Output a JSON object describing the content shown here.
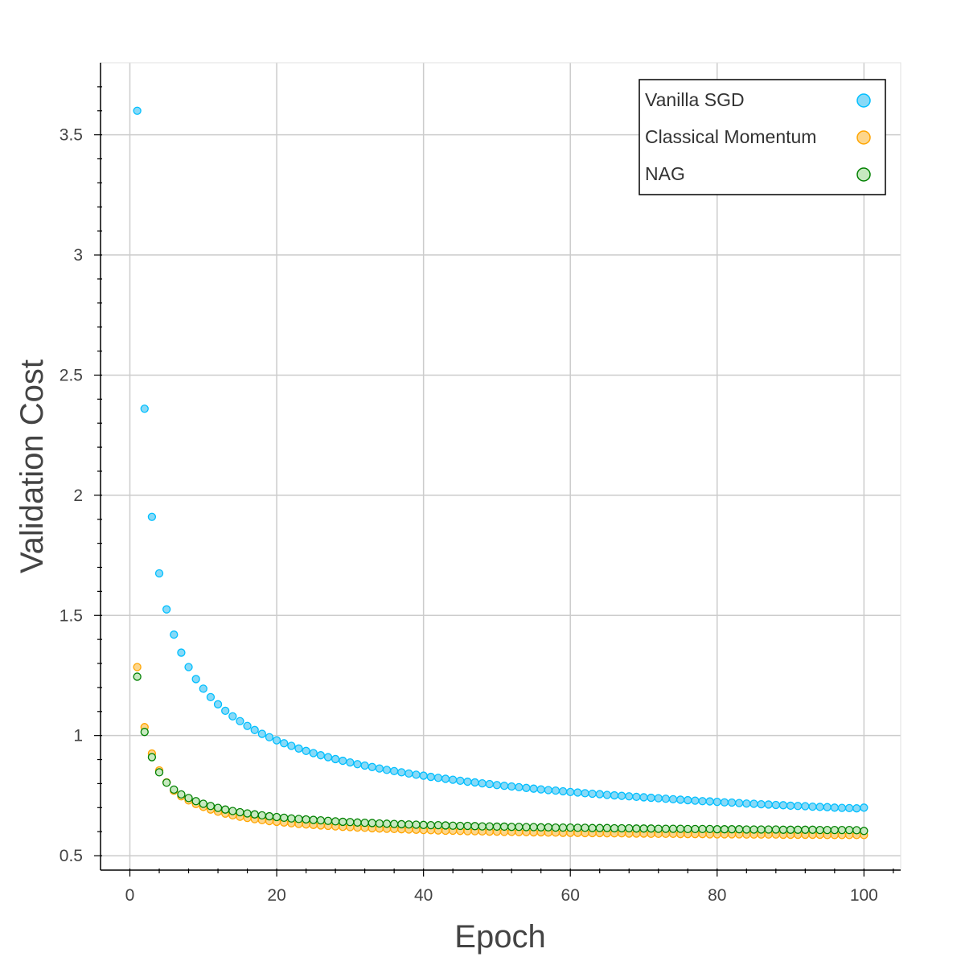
{
  "chart_data": {
    "type": "scatter",
    "title": "",
    "xlabel": "Epoch",
    "ylabel": "Validation Cost",
    "xlim": [
      -4,
      105
    ],
    "ylim": [
      0.44,
      3.8
    ],
    "grid": true,
    "legend_position": "top-right",
    "x_ticks": [
      0,
      20,
      40,
      60,
      80,
      100
    ],
    "x_tick_labels": [
      "0",
      "20",
      "40",
      "60",
      "80",
      "100"
    ],
    "y_ticks": [
      0.5,
      1,
      1.5,
      2,
      2.5,
      3,
      3.5
    ],
    "y_tick_labels": [
      "0.5",
      "1",
      "1.5",
      "2",
      "2.5",
      "3",
      "3.5"
    ],
    "series": [
      {
        "name": "Vanilla SGD",
        "fill": "#87d9f7",
        "stroke": "#00bfff",
        "x": [
          1,
          2,
          3,
          4,
          5,
          6,
          7,
          8,
          9,
          10,
          11,
          12,
          13,
          14,
          15,
          16,
          17,
          18,
          19,
          20,
          21,
          22,
          23,
          24,
          25,
          26,
          27,
          28,
          29,
          30,
          31,
          32,
          33,
          34,
          35,
          36,
          37,
          38,
          39,
          40,
          41,
          42,
          43,
          44,
          45,
          46,
          47,
          48,
          49,
          50,
          51,
          52,
          53,
          54,
          55,
          56,
          57,
          58,
          59,
          60,
          61,
          62,
          63,
          64,
          65,
          66,
          67,
          68,
          69,
          70,
          71,
          72,
          73,
          74,
          75,
          76,
          77,
          78,
          79,
          80,
          81,
          82,
          83,
          84,
          85,
          86,
          87,
          88,
          89,
          90,
          91,
          92,
          93,
          94,
          95,
          96,
          97,
          98,
          99,
          100
        ],
        "y": [
          3.6,
          2.36,
          1.91,
          1.675,
          1.525,
          1.42,
          1.345,
          1.285,
          1.235,
          1.195,
          1.16,
          1.13,
          1.103,
          1.08,
          1.06,
          1.04,
          1.023,
          1.007,
          0.993,
          0.98,
          0.968,
          0.957,
          0.946,
          0.936,
          0.927,
          0.918,
          0.91,
          0.902,
          0.895,
          0.888,
          0.881,
          0.875,
          0.869,
          0.863,
          0.857,
          0.852,
          0.847,
          0.842,
          0.837,
          0.833,
          0.828,
          0.824,
          0.82,
          0.816,
          0.812,
          0.808,
          0.805,
          0.801,
          0.798,
          0.794,
          0.791,
          0.788,
          0.785,
          0.782,
          0.779,
          0.776,
          0.773,
          0.771,
          0.768,
          0.765,
          0.763,
          0.76,
          0.758,
          0.756,
          0.753,
          0.751,
          0.749,
          0.747,
          0.745,
          0.743,
          0.741,
          0.739,
          0.737,
          0.735,
          0.733,
          0.731,
          0.729,
          0.727,
          0.726,
          0.724,
          0.722,
          0.721,
          0.719,
          0.717,
          0.716,
          0.714,
          0.713,
          0.711,
          0.71,
          0.708,
          0.707,
          0.706,
          0.704,
          0.703,
          0.702,
          0.7,
          0.699,
          0.698,
          0.697,
          0.7
        ]
      },
      {
        "name": "Classical Momentum",
        "fill": "#fdd68b",
        "stroke": "#ffa500",
        "x": [
          1,
          2,
          3,
          4,
          5,
          6,
          7,
          8,
          9,
          10,
          11,
          12,
          13,
          14,
          15,
          16,
          17,
          18,
          19,
          20,
          21,
          22,
          23,
          24,
          25,
          26,
          27,
          28,
          29,
          30,
          31,
          32,
          33,
          34,
          35,
          36,
          37,
          38,
          39,
          40,
          41,
          42,
          43,
          44,
          45,
          46,
          47,
          48,
          49,
          50,
          51,
          52,
          53,
          54,
          55,
          56,
          57,
          58,
          59,
          60,
          61,
          62,
          63,
          64,
          65,
          66,
          67,
          68,
          69,
          70,
          71,
          72,
          73,
          74,
          75,
          76,
          77,
          78,
          79,
          80,
          81,
          82,
          83,
          84,
          85,
          86,
          87,
          88,
          89,
          90,
          91,
          92,
          93,
          94,
          95,
          96,
          97,
          98,
          99,
          100
        ],
        "y": [
          1.285,
          1.035,
          0.925,
          0.855,
          0.805,
          0.77,
          0.747,
          0.73,
          0.715,
          0.703,
          0.692,
          0.683,
          0.675,
          0.668,
          0.662,
          0.657,
          0.652,
          0.648,
          0.644,
          0.641,
          0.638,
          0.635,
          0.632,
          0.63,
          0.628,
          0.626,
          0.624,
          0.622,
          0.62,
          0.619,
          0.617,
          0.616,
          0.614,
          0.613,
          0.612,
          0.611,
          0.61,
          0.609,
          0.608,
          0.607,
          0.606,
          0.605,
          0.604,
          0.604,
          0.603,
          0.602,
          0.602,
          0.601,
          0.6,
          0.6,
          0.599,
          0.599,
          0.598,
          0.598,
          0.597,
          0.597,
          0.596,
          0.596,
          0.595,
          0.595,
          0.595,
          0.594,
          0.594,
          0.594,
          0.593,
          0.593,
          0.593,
          0.592,
          0.592,
          0.592,
          0.591,
          0.591,
          0.591,
          0.591,
          0.59,
          0.59,
          0.59,
          0.59,
          0.589,
          0.589,
          0.589,
          0.589,
          0.589,
          0.588,
          0.588,
          0.588,
          0.588,
          0.588,
          0.587,
          0.587,
          0.587,
          0.587,
          0.587,
          0.587,
          0.586,
          0.586,
          0.586,
          0.586,
          0.586,
          0.586
        ]
      },
      {
        "name": "NAG",
        "fill": "#c7e9c0",
        "stroke": "#008000",
        "x": [
          1,
          2,
          3,
          4,
          5,
          6,
          7,
          8,
          9,
          10,
          11,
          12,
          13,
          14,
          15,
          16,
          17,
          18,
          19,
          20,
          21,
          22,
          23,
          24,
          25,
          26,
          27,
          28,
          29,
          30,
          31,
          32,
          33,
          34,
          35,
          36,
          37,
          38,
          39,
          40,
          41,
          42,
          43,
          44,
          45,
          46,
          47,
          48,
          49,
          50,
          51,
          52,
          53,
          54,
          55,
          56,
          57,
          58,
          59,
          60,
          61,
          62,
          63,
          64,
          65,
          66,
          67,
          68,
          69,
          70,
          71,
          72,
          73,
          74,
          75,
          76,
          77,
          78,
          79,
          80,
          81,
          82,
          83,
          84,
          85,
          86,
          87,
          88,
          89,
          90,
          91,
          92,
          93,
          94,
          95,
          96,
          97,
          98,
          99,
          100
        ],
        "y": [
          1.245,
          1.015,
          0.91,
          0.847,
          0.804,
          0.775,
          0.755,
          0.74,
          0.727,
          0.716,
          0.707,
          0.699,
          0.692,
          0.686,
          0.681,
          0.676,
          0.672,
          0.668,
          0.664,
          0.661,
          0.658,
          0.655,
          0.653,
          0.651,
          0.649,
          0.647,
          0.645,
          0.643,
          0.641,
          0.64,
          0.638,
          0.637,
          0.636,
          0.634,
          0.633,
          0.632,
          0.631,
          0.63,
          0.629,
          0.628,
          0.627,
          0.627,
          0.626,
          0.625,
          0.624,
          0.624,
          0.623,
          0.622,
          0.622,
          0.621,
          0.621,
          0.62,
          0.62,
          0.619,
          0.619,
          0.618,
          0.618,
          0.617,
          0.617,
          0.617,
          0.616,
          0.616,
          0.615,
          0.615,
          0.615,
          0.614,
          0.614,
          0.614,
          0.613,
          0.613,
          0.613,
          0.612,
          0.612,
          0.612,
          0.612,
          0.611,
          0.611,
          0.611,
          0.611,
          0.61,
          0.61,
          0.61,
          0.61,
          0.609,
          0.609,
          0.609,
          0.609,
          0.609,
          0.608,
          0.608,
          0.608,
          0.608,
          0.608,
          0.607,
          0.607,
          0.607,
          0.607,
          0.607,
          0.606,
          0.603
        ]
      }
    ]
  }
}
